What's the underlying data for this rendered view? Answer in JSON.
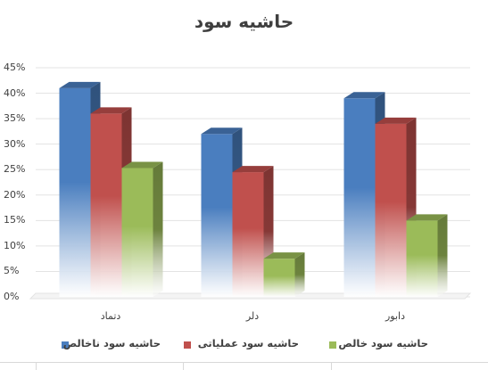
{
  "chart_data": {
    "type": "bar",
    "title": "حاشیه سود",
    "categories": [
      "دتماد",
      "دلر",
      "دابور"
    ],
    "series": [
      {
        "name": "حاشیه سود ناخالص",
        "color": "#4a7ebf",
        "values": [
          41,
          32,
          39
        ]
      },
      {
        "name": "حاشیه سود عملیاتی",
        "color": "#c0504d",
        "values": [
          36,
          24.5,
          34
        ]
      },
      {
        "name": "حاشیه سود خالص",
        "color": "#9bbb59",
        "values": [
          25.3,
          7.5,
          15
        ]
      }
    ],
    "ylim": [
      0,
      45
    ],
    "yticks": [
      "0%",
      "5%",
      "10%",
      "15%",
      "20%",
      "25%",
      "30%",
      "35%",
      "40%",
      "45%"
    ],
    "grid": true,
    "legend_position": "bottom",
    "style": "3d-clustered-column"
  }
}
